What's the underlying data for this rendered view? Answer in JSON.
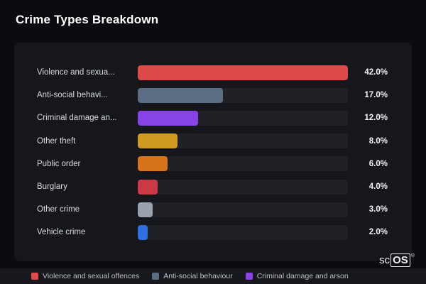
{
  "title": "Crime Types Breakdown",
  "chart_data": {
    "type": "bar",
    "orientation": "horizontal",
    "title": "Crime Types Breakdown",
    "xlabel": "",
    "ylabel": "",
    "xlim": [
      0,
      42
    ],
    "grid": false,
    "categories": [
      "Violence and sexua...",
      "Anti-social behavi...",
      "Criminal damage an...",
      "Other theft",
      "Public order",
      "Burglary",
      "Other crime",
      "Vehicle crime"
    ],
    "values": [
      42.0,
      17.0,
      12.0,
      8.0,
      6.0,
      4.0,
      3.0,
      2.0
    ],
    "value_labels": [
      "42.0%",
      "17.0%",
      "12.0%",
      "8.0%",
      "6.0%",
      "4.0%",
      "3.0%",
      "2.0%"
    ],
    "colors": [
      "#dc4a4a",
      "#5b6d83",
      "#8743e6",
      "#d09a22",
      "#d5741b",
      "#c93a44",
      "#98a1ac",
      "#2f6fe2"
    ],
    "legend_position": "bottom"
  },
  "legend": [
    {
      "label": "Violence and sexual offences",
      "color": "#dc4a4a"
    },
    {
      "label": "Anti-social behaviour",
      "color": "#5b6d83"
    },
    {
      "label": "Criminal damage and arson",
      "color": "#8743e6"
    }
  ],
  "branding": {
    "prefix": "sc",
    "box": "OS",
    "registered": "®"
  },
  "colors": {
    "page_bg": "#0b0c10",
    "card_bg": "#16171c",
    "track_bg": "#1f2127",
    "label_text": "#d8dbe0",
    "value_text": "#f4f5f7"
  }
}
